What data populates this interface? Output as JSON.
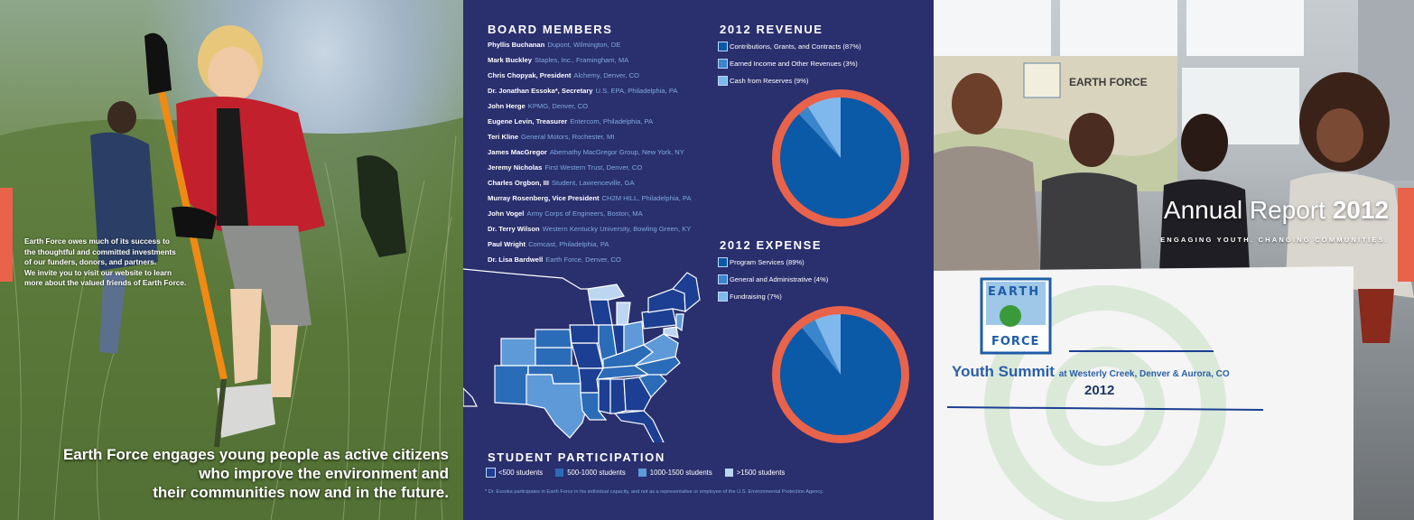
{
  "left": {
    "blurb": [
      "Earth Force owes much of its success to",
      "the thoughtful and committed investments",
      "of our funders, donors, and partners.",
      "We invite you to visit our website to learn",
      "more about the valued friends of Earth Force."
    ],
    "tagline": [
      "Earth Force engages young people as active citizens",
      "who improve the environment and",
      "their communities now and in the future."
    ]
  },
  "board": {
    "heading": "BOARD MEMBERS",
    "members": [
      {
        "name": "Phyllis Buchanan",
        "org": "Dupont, Wilmington, DE"
      },
      {
        "name": "Mark Buckley",
        "org": "Staples, Inc., Framingham, MA"
      },
      {
        "name": "Chris Chopyak, President",
        "org": "Alchemy, Denver, CO"
      },
      {
        "name": "Dr. Jonathan Essoka*, Secretary",
        "org": "U.S. EPA, Philadelphia, PA"
      },
      {
        "name": "John Herge",
        "org": "KPMG, Denver, CO"
      },
      {
        "name": "Eugene Levin, Treasurer",
        "org": "Entercom, Philadelphia, PA"
      },
      {
        "name": "Teri Kline",
        "org": "General Motors, Rochester, MI"
      },
      {
        "name": "James MacGregor",
        "org": "Abernathy MacGregor Group, New York, NY"
      },
      {
        "name": "Jeremy Nicholas",
        "org": "First Western Trust, Denver, CO"
      },
      {
        "name": "Charles Orgbon, III",
        "org": "Student, Lawrenceville, GA"
      },
      {
        "name": "Murray Rosenberg, Vice President",
        "org": "CH2M HILL, Philadelphia, PA"
      },
      {
        "name": "John Vogel",
        "org": "Army Corps of Engineers, Boston, MA"
      },
      {
        "name": "Dr. Terry Wilson",
        "org": "Western Kentucky University, Bowling Green, KY"
      },
      {
        "name": "Paul Wright",
        "org": "Comcast, Philadelphia, PA"
      },
      {
        "name": "Dr. Lisa Bardwell",
        "org": "Earth Force, Denver, CO"
      }
    ]
  },
  "revenue": {
    "heading": "2012 REVENUE",
    "items": [
      {
        "label": "Contributions, Grants, and Contracts (87%)",
        "color": "#0a5aa8"
      },
      {
        "label": "Earned Income and Other Revenues (3%)",
        "color": "#3a86cc"
      },
      {
        "label": "Cash from Reserves (9%)",
        "color": "#7fb8ec"
      }
    ]
  },
  "expense": {
    "heading": "2012 EXPENSE",
    "items": [
      {
        "label": "Program Services (89%)",
        "color": "#0a5aa8"
      },
      {
        "label": "General and Administrative (4%)",
        "color": "#3a86cc"
      },
      {
        "label": "Fundraising (7%)",
        "color": "#7fb8ec"
      }
    ]
  },
  "participation": {
    "heading": "STUDENT PARTICIPATION",
    "legend": [
      {
        "label": "<500 students",
        "color": "#1c3f93"
      },
      {
        "label": "500-1000 students",
        "color": "#2b6cb8"
      },
      {
        "label": "1000-1500 students",
        "color": "#5e9ad8"
      },
      {
        "label": ">1500 students",
        "color": "#bcd6f2"
      }
    ],
    "footnote": "* Dr. Essoka participates in Earth Force in his individual capacity, and not as a representative or employee of the U.S. Environmental Protection Agency."
  },
  "right": {
    "title_main": "Annual Report",
    "title_year": "2012",
    "subtitle": "ENGAGING YOUTH. CHANGING COMMUNITIES.",
    "banner_summit": "Youth Summit",
    "banner_location": "at Westerly Creek, Denver & Aurora, CO",
    "banner_year": "2012",
    "logo_top": "EARTH",
    "logo_bottom": "FORCE",
    "wall_text": "EARTH FORCE"
  },
  "chart_data": [
    {
      "type": "pie",
      "title": "2012 REVENUE",
      "categories": [
        "Contributions, Grants, and Contracts",
        "Earned Income and Other Revenues",
        "Cash from Reserves"
      ],
      "values": [
        87,
        3,
        9
      ],
      "colors": [
        "#0a5aa8",
        "#3a86cc",
        "#7fb8ec"
      ],
      "legend": "top-left"
    },
    {
      "type": "pie",
      "title": "2012 EXPENSE",
      "categories": [
        "Program Services",
        "General and Administrative",
        "Fundraising"
      ],
      "values": [
        89,
        4,
        7
      ],
      "colors": [
        "#0a5aa8",
        "#3a86cc",
        "#7fb8ec"
      ],
      "legend": "top-left"
    }
  ]
}
